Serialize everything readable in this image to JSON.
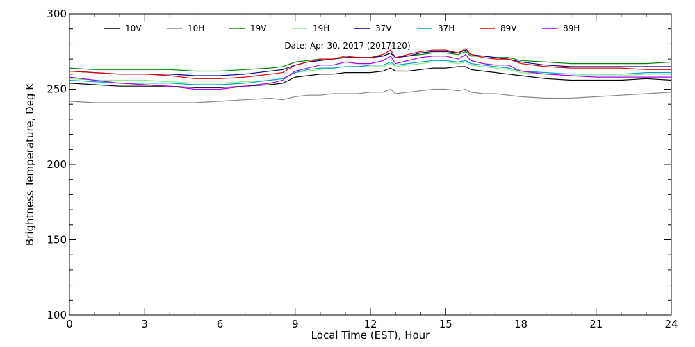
{
  "chart_data": {
    "type": "line",
    "title": "",
    "annotation": "Date: Apr 30, 2017 (2017120)",
    "xlabel": "Local Time (EST), Hour",
    "ylabel": "Brightness Temperature, Deg K",
    "xlim": [
      0,
      24
    ],
    "ylim": [
      100,
      300
    ],
    "xticks": [
      0,
      3,
      6,
      9,
      12,
      15,
      18,
      21,
      24
    ],
    "yticks": [
      100,
      150,
      200,
      250,
      300
    ],
    "grid": false,
    "legend_position": "top",
    "x": [
      0,
      1,
      2,
      3,
      4,
      5,
      6,
      7,
      8,
      8.5,
      9,
      9.5,
      10,
      10.5,
      11,
      11.5,
      12,
      12.5,
      12.8,
      13,
      13.5,
      14,
      14.5,
      15,
      15.5,
      15.8,
      16,
      16.5,
      17,
      17.5,
      18,
      19,
      20,
      21,
      22,
      23,
      24
    ],
    "series": [
      {
        "name": "10V",
        "color": "#000000",
        "values": [
          254,
          253,
          252,
          252,
          252,
          251,
          251,
          252,
          253,
          254,
          258,
          259,
          260,
          260,
          261,
          261,
          261,
          262,
          264,
          262,
          262,
          263,
          264,
          264,
          265,
          265,
          263,
          262,
          261,
          260,
          259,
          257,
          256,
          256,
          256,
          257,
          256
        ]
      },
      {
        "name": "10H",
        "color": "#888888",
        "values": [
          242,
          241,
          241,
          241,
          241,
          241,
          242,
          243,
          244,
          243,
          245,
          246,
          246,
          247,
          247,
          247,
          248,
          248,
          250,
          247,
          248,
          249,
          250,
          250,
          249,
          250,
          248,
          247,
          247,
          246,
          245,
          244,
          244,
          245,
          246,
          247,
          248
        ]
      },
      {
        "name": "19V",
        "color": "#008800",
        "values": [
          264,
          263,
          263,
          263,
          263,
          262,
          262,
          263,
          264,
          265,
          268,
          269,
          270,
          270,
          271,
          271,
          271,
          272,
          274,
          271,
          272,
          273,
          274,
          274,
          273,
          275,
          272,
          272,
          271,
          271,
          269,
          268,
          267,
          267,
          267,
          267,
          268
        ]
      },
      {
        "name": "19H",
        "color": "#88ee88",
        "values": [
          257,
          256,
          256,
          256,
          255,
          254,
          254,
          255,
          256,
          257,
          261,
          262,
          263,
          264,
          265,
          265,
          265,
          265,
          267,
          265,
          266,
          267,
          268,
          268,
          267,
          268,
          266,
          265,
          264,
          263,
          261,
          260,
          259,
          259,
          259,
          260,
          260
        ]
      },
      {
        "name": "37V",
        "color": "#000088",
        "values": [
          262,
          261,
          260,
          260,
          260,
          259,
          259,
          260,
          262,
          263,
          266,
          268,
          269,
          270,
          271,
          271,
          271,
          272,
          274,
          271,
          272,
          274,
          275,
          275,
          274,
          276,
          273,
          272,
          271,
          270,
          268,
          266,
          265,
          265,
          265,
          265,
          265
        ]
      },
      {
        "name": "37H",
        "color": "#00a0c8",
        "values": [
          256,
          255,
          254,
          254,
          254,
          253,
          253,
          254,
          256,
          257,
          261,
          263,
          264,
          264,
          265,
          265,
          266,
          266,
          268,
          266,
          267,
          268,
          269,
          269,
          268,
          269,
          267,
          266,
          265,
          264,
          262,
          261,
          260,
          260,
          260,
          261,
          261
        ]
      },
      {
        "name": "89V",
        "color": "#dd0000",
        "values": [
          262,
          261,
          260,
          260,
          259,
          257,
          257,
          258,
          260,
          261,
          266,
          268,
          270,
          270,
          272,
          271,
          271,
          273,
          276,
          271,
          273,
          275,
          276,
          276,
          274,
          277,
          273,
          271,
          270,
          270,
          267,
          265,
          264,
          264,
          264,
          263,
          263
        ]
      },
      {
        "name": "89H",
        "color": "#aa00ee",
        "values": [
          258,
          256,
          254,
          253,
          252,
          250,
          250,
          252,
          254,
          256,
          262,
          264,
          266,
          266,
          268,
          267,
          267,
          269,
          272,
          267,
          269,
          271,
          272,
          272,
          270,
          273,
          269,
          267,
          266,
          266,
          262,
          260,
          259,
          258,
          258,
          258,
          258
        ]
      }
    ]
  }
}
